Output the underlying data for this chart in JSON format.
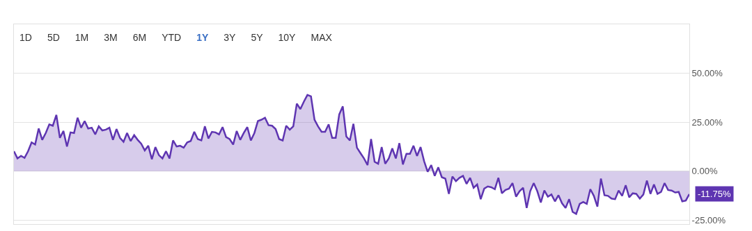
{
  "chart_data": {
    "type": "area",
    "annotations": [
      "1D",
      "5D",
      "1M",
      "3M",
      "6M",
      "YTD",
      "1Y",
      "3Y",
      "5Y",
      "10Y",
      "MAX"
    ],
    "categories": [
      null,
      null,
      null,
      null,
      null,
      null,
      null,
      null,
      null,
      null,
      null,
      null,
      null,
      null,
      null,
      null,
      null,
      null,
      null,
      null,
      null,
      null,
      null,
      null,
      null,
      null,
      null,
      null,
      null,
      null,
      null,
      null,
      null,
      null,
      null,
      null,
      null,
      null,
      null,
      null,
      null,
      null,
      null,
      null,
      null,
      null,
      null,
      null,
      null,
      null,
      null,
      null,
      null,
      null,
      null,
      null,
      null,
      null,
      null,
      null,
      null,
      null,
      null,
      null,
      null,
      null,
      null,
      null,
      null,
      null,
      null,
      null,
      null,
      null,
      null,
      null,
      null,
      null,
      null,
      null,
      null,
      null,
      null,
      null,
      null,
      null,
      null,
      null,
      null,
      null,
      null,
      null,
      null,
      null,
      null,
      null,
      null,
      null,
      null,
      null,
      null,
      null,
      null,
      null,
      null,
      null,
      null,
      null,
      null,
      null,
      null,
      null,
      null,
      null,
      null,
      null,
      null,
      null,
      null,
      null,
      null,
      null,
      null,
      null,
      null,
      null,
      null,
      null,
      null,
      null,
      null,
      null,
      null,
      null,
      null,
      null,
      null,
      null,
      null,
      null,
      null,
      null,
      null,
      null,
      null,
      null,
      null,
      null,
      null,
      null,
      null,
      null,
      null,
      null,
      null,
      null,
      null,
      null,
      null,
      null,
      null,
      null,
      null,
      null,
      null,
      null,
      null,
      null,
      null,
      null,
      null,
      null,
      null,
      null,
      null,
      null,
      null,
      null,
      null,
      null,
      null,
      null,
      null,
      null,
      null,
      null,
      null,
      null,
      null,
      null,
      null,
      null
    ],
    "series": [
      {
        "color": "#5e35b1",
        "values": [
          10.2,
          6.5,
          7.8,
          6.8,
          10.2,
          14.7,
          13.6,
          21.8,
          16,
          19.5,
          23.9,
          23.2,
          28.7,
          17,
          20.5,
          12.6,
          19.8,
          19.5,
          27.3,
          22.2,
          25.6,
          21.8,
          22.2,
          18.8,
          22.9,
          20.8,
          21.2,
          22.2,
          16,
          21.5,
          17,
          15,
          19.5,
          15.4,
          18.4,
          16,
          14,
          10.6,
          13,
          6.1,
          12.3,
          8.2,
          6.5,
          10.2,
          6.5,
          15.7,
          12.6,
          13,
          12,
          14.7,
          15.4,
          20.1,
          16.4,
          15.7,
          22.9,
          16.7,
          20.1,
          19.8,
          18.8,
          22.5,
          17.4,
          16.4,
          13.6,
          20.5,
          16,
          19.5,
          22.5,
          15.7,
          19.5,
          25.6,
          26.3,
          27.3,
          23.5,
          23.2,
          21.5,
          16.4,
          15.7,
          23.2,
          21.2,
          22.9,
          34.5,
          31.7,
          35.5,
          38.9,
          38.2,
          26.3,
          22.9,
          20.1,
          20.1,
          23.9,
          17,
          17,
          29,
          33.1,
          17.7,
          15.7,
          24.2,
          12,
          9.2,
          6.5,
          3.1,
          16.4,
          4.8,
          3.8,
          12.3,
          3.8,
          6.5,
          11.6,
          6.5,
          14.3,
          3.4,
          8.9,
          8.9,
          13,
          7.8,
          12.3,
          5.1,
          -0.3,
          3.1,
          -2.4,
          2,
          -3.1,
          -3.8,
          -11.6,
          -2.7,
          -5.1,
          -3.4,
          -2.4,
          -6.5,
          -3.4,
          -8.5,
          -6.8,
          -14.3,
          -8.9,
          -7.8,
          -8.2,
          -9.2,
          -3.4,
          -11.3,
          -9.6,
          -8.9,
          -6.1,
          -13,
          -10.2,
          -8.5,
          -18.8,
          -10.2,
          -6.1,
          -10.2,
          -16,
          -9.9,
          -13,
          -11.9,
          -15.4,
          -12.3,
          -16.4,
          -18.8,
          -14.3,
          -20.8,
          -21.8,
          -16.7,
          -15.7,
          -16.7,
          -9.2,
          -12.6,
          -18.1,
          -3.8,
          -12.3,
          -12.6,
          -14,
          -14.3,
          -9.9,
          -12.6,
          -7.2,
          -13.3,
          -11.3,
          -11.6,
          -14,
          -11.9,
          -4.8,
          -11.6,
          -6.8,
          -11.6,
          -10.6,
          -6.1,
          -9.6,
          -9.9,
          -10.9,
          -10.6,
          -15.4,
          -15,
          -11.75
        ],
        "value_labels": [
          null,
          null,
          null,
          null,
          null,
          null,
          null,
          null,
          null,
          null,
          null,
          null,
          null,
          null,
          null,
          null,
          null,
          null,
          null,
          null,
          null,
          null,
          null,
          null,
          null,
          null,
          null,
          null,
          null,
          null,
          null,
          null,
          null,
          null,
          null,
          null,
          null,
          null,
          null,
          null,
          null,
          null,
          null,
          null,
          null,
          null,
          null,
          null,
          null,
          null,
          null,
          null,
          null,
          null,
          null,
          null,
          null,
          null,
          null,
          null,
          null,
          null,
          null,
          null,
          null,
          null,
          null,
          null,
          null,
          null,
          null,
          null,
          null,
          null,
          null,
          null,
          null,
          null,
          null,
          null,
          null,
          null,
          null,
          null,
          null,
          null,
          null,
          null,
          null,
          null,
          null,
          null,
          null,
          null,
          null,
          null,
          null,
          null,
          null,
          null,
          null,
          null,
          null,
          null,
          null,
          null,
          null,
          null,
          null,
          null,
          null,
          null,
          null,
          null,
          null,
          null,
          null,
          null,
          null,
          null,
          null,
          null,
          null,
          null,
          null,
          null,
          null,
          null,
          null,
          null,
          null,
          null,
          null,
          null,
          null,
          null,
          null,
          null,
          null,
          null,
          null,
          null,
          null,
          null,
          null,
          null,
          null,
          null,
          null,
          null,
          null,
          null,
          null,
          null,
          null,
          null,
          null,
          null,
          null,
          null,
          null,
          null,
          null,
          null,
          null,
          null,
          null,
          null,
          null,
          null,
          null,
          null,
          null,
          null,
          null,
          null,
          null,
          null,
          null,
          null,
          null,
          null,
          null,
          null,
          null,
          null,
          null,
          null,
          null,
          null,
          null,
          "-11.75%"
        ]
      }
    ],
    "ylim": [
      -27,
      75
    ],
    "yticks": [
      {
        "value": -25,
        "label": "-25.00%"
      },
      {
        "value": 0,
        "label": "0.00%"
      },
      {
        "value": 25,
        "label": "25.00%"
      },
      {
        "value": 50,
        "label": "50.00%"
      }
    ],
    "grid": "y",
    "legend": false,
    "marker": "none",
    "line_style": "solid"
  }
}
